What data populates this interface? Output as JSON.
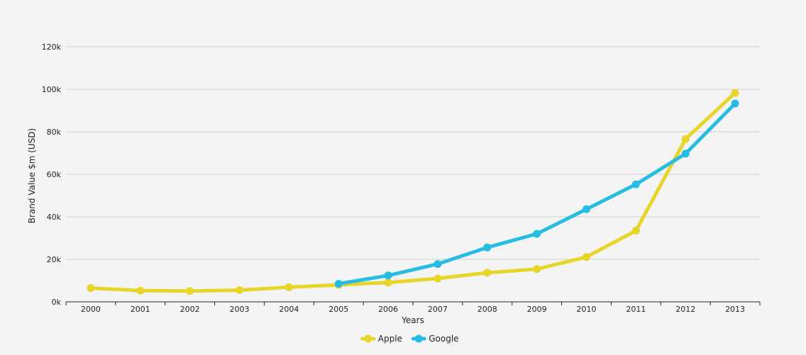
{
  "chart_data": {
    "type": "line",
    "title": "",
    "xlabel": "Years",
    "ylabel": "Brand Value $m (USD)",
    "categories": [
      "2000",
      "2001",
      "2002",
      "2003",
      "2004",
      "2005",
      "2006",
      "2007",
      "2008",
      "2009",
      "2010",
      "2011",
      "2012",
      "2013"
    ],
    "ylim": [
      0,
      120000
    ],
    "y_ticks": [
      0,
      20000,
      40000,
      60000,
      80000,
      100000,
      120000
    ],
    "y_tick_labels": [
      "0k",
      "20k",
      "40k",
      "60k",
      "80k",
      "100k",
      "120k"
    ],
    "grid": true,
    "legend_position": "bottom-center",
    "series": [
      {
        "name": "Apple",
        "color": "#e8d52a",
        "values": [
          6500,
          5300,
          5100,
          5500,
          6900,
          8000,
          9100,
          11000,
          13700,
          15400,
          21100,
          33500,
          76600,
          98300
        ]
      },
      {
        "name": "Google",
        "color": "#27bde3",
        "values": [
          null,
          null,
          null,
          null,
          null,
          8500,
          12400,
          17800,
          25600,
          32000,
          43600,
          55300,
          69700,
          93300
        ]
      }
    ]
  }
}
